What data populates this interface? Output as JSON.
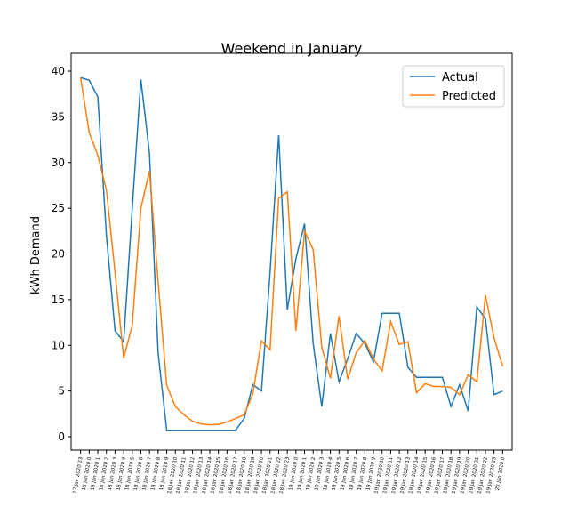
{
  "chart_data": {
    "type": "line",
    "title": "Weekend in January",
    "y_label": "kWh Demand",
    "categories": [
      "17 Jan 2020 23",
      "18 Jan 2020 0",
      "18 Jan 2020 1",
      "18 Jan 2020 2",
      "18 Jan 2020 3",
      "18 Jan 2020 4",
      "18 Jan 2020 5",
      "18 Jan 2020 6",
      "18 Jan 2020 7",
      "18 Jan 2020 8",
      "18 Jan 2020 9",
      "18 Jan 2020 10",
      "18 Jan 2020 11",
      "18 Jan 2020 12",
      "18 Jan 2020 13",
      "18 Jan 2020 14",
      "18 Jan 2020 15",
      "18 Jan 2020 16",
      "18 Jan 2020 17",
      "18 Jan 2020 18",
      "18 Jan 2020 19",
      "18 Jan 2020 20",
      "18 Jan 2020 21",
      "18 Jan 2020 22",
      "18 Jan 2020 23",
      "19 Jan 2020 0",
      "19 Jan 2020 1",
      "19 Jan 2020 2",
      "19 Jan 2020 3",
      "19 Jan 2020 4",
      "19 Jan 2020 5",
      "19 Jan 2020 6",
      "19 Jan 2020 7",
      "19 Jan 2020 8",
      "19 Jan 2020 9",
      "19 Jan 2020 10",
      "19 Jan 2020 11",
      "19 Jan 2020 12",
      "19 Jan 2020 13",
      "19 Jan 2020 14",
      "19 Jan 2020 15",
      "19 Jan 2020 16",
      "19 Jan 2020 17",
      "19 Jan 2020 18",
      "19 Jan 2020 19",
      "19 Jan 2020 20",
      "19 Jan 2020 21",
      "19 Jan 2020 22",
      "19 Jan 2020 23",
      "20 Jan 2020 0"
    ],
    "series": [
      {
        "name": "Actual",
        "color": "#1f77b4",
        "values": [
          39.3,
          39.0,
          37.2,
          22,
          11.6,
          10.4,
          25,
          39.1,
          31,
          9.2,
          0.7,
          0.7,
          0.7,
          0.7,
          0.7,
          0.7,
          0.7,
          0.7,
          0.7,
          2.0,
          5.7,
          5.0,
          18,
          33.0,
          13.9,
          19.5,
          23.3,
          10.2,
          3.3,
          11.3,
          6.0,
          8.5,
          11.3,
          10.2,
          8.2,
          13.5,
          13.5,
          13.5,
          7.6,
          6.5,
          6.5,
          6.5,
          6.5,
          3.3,
          5.7,
          2.8,
          14.2,
          12.9,
          4.6,
          5.0
        ]
      },
      {
        "name": "Predicted",
        "color": "#ff7f0e",
        "values": [
          39.3,
          33.3,
          30.8,
          27,
          18,
          8.6,
          12.2,
          25,
          29.1,
          17,
          5.6,
          3.3,
          2.4,
          1.7,
          1.4,
          1.3,
          1.35,
          1.6,
          2.0,
          2.4,
          4.7,
          10.5,
          9.5,
          26.1,
          26.8,
          11.6,
          22.5,
          20.5,
          9.8,
          6.4,
          13.2,
          6.3,
          9.2,
          10.5,
          8.5,
          7.2,
          12.6,
          10.1,
          10.4,
          4.8,
          5.8,
          5.5,
          5.5,
          5.4,
          4.6,
          6.8,
          6.0,
          15.5,
          10.8,
          7.7
        ]
      }
    ],
    "ylim": [
      -1.46,
      41.95
    ],
    "yticks": [
      0,
      5,
      10,
      15,
      20,
      25,
      30,
      35,
      40
    ],
    "legend": "upper right"
  }
}
